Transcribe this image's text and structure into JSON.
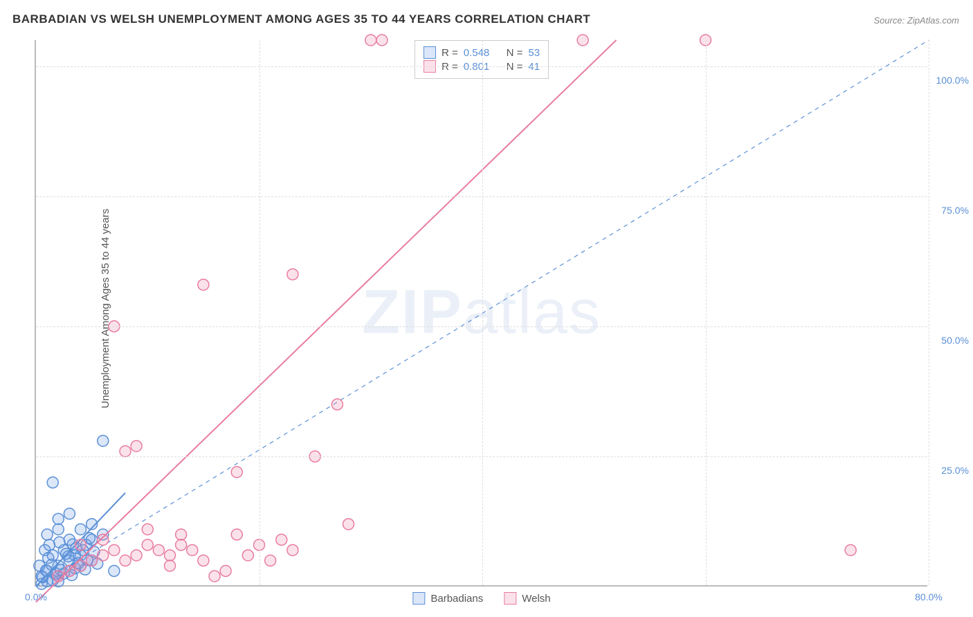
{
  "title": "BARBADIAN VS WELSH UNEMPLOYMENT AMONG AGES 35 TO 44 YEARS CORRELATION CHART",
  "source": "Source: ZipAtlas.com",
  "ylabel": "Unemployment Among Ages 35 to 44 years",
  "watermark_a": "ZIP",
  "watermark_b": "atlas",
  "chart": {
    "type": "scatter",
    "xlim": [
      0,
      80
    ],
    "ylim": [
      0,
      105
    ],
    "x_ticks": [
      0,
      20,
      40,
      60,
      80
    ],
    "y_ticks": [
      25,
      50,
      75,
      100
    ],
    "x_tick_labels": [
      "0.0%",
      "",
      "",
      "",
      "80.0%"
    ],
    "y_tick_labels": [
      "25.0%",
      "50.0%",
      "75.0%",
      "100.0%"
    ],
    "grid_color": "#dddddd",
    "axis_color": "#bbbbbb",
    "background_color": "#ffffff",
    "tick_label_color": "#5a8fd6",
    "tick_fontsize": 14,
    "title_fontsize": 17,
    "label_fontsize": 15,
    "marker_radius": 8,
    "marker_stroke_width": 1.5,
    "line_width": 2,
    "series": [
      {
        "name": "Barbadians",
        "color_fill": "rgba(110,160,230,0.25)",
        "color_stroke": "#5a8fd6",
        "R": "0.548",
        "N": "53",
        "points": [
          [
            0.5,
            0.5
          ],
          [
            1,
            1
          ],
          [
            1.5,
            1.2
          ],
          [
            2,
            2
          ],
          [
            2.5,
            2.5
          ],
          [
            3,
            3
          ],
          [
            3.5,
            3.5
          ],
          [
            4,
            4
          ],
          [
            1,
            3
          ],
          [
            2,
            1
          ],
          [
            3,
            5
          ],
          [
            4,
            6
          ],
          [
            5,
            5
          ],
          [
            2,
            4
          ],
          [
            1.5,
            6
          ],
          [
            0.8,
            7
          ],
          [
            1.2,
            8
          ],
          [
            2.5,
            7
          ],
          [
            3.5,
            6
          ],
          [
            4.5,
            8
          ],
          [
            5,
            9
          ],
          [
            1,
            10
          ],
          [
            2,
            11
          ],
          [
            3,
            9
          ],
          [
            4,
            11
          ],
          [
            5,
            12
          ],
          [
            6,
            10
          ],
          [
            2,
            13
          ],
          [
            3,
            14
          ],
          [
            1.5,
            20
          ],
          [
            6,
            28
          ],
          [
            7,
            3
          ],
          [
            0.5,
            2
          ],
          [
            1.8,
            2.5
          ],
          [
            2.2,
            3.2
          ],
          [
            3.8,
            4.5
          ],
          [
            4.2,
            7
          ],
          [
            0.3,
            4
          ],
          [
            1.1,
            5.5
          ],
          [
            2.7,
            6.3
          ],
          [
            3.3,
            8.1
          ],
          [
            4.8,
            9.3
          ],
          [
            0.6,
            1.8
          ],
          [
            1.4,
            4.2
          ],
          [
            2.9,
            5.8
          ],
          [
            3.6,
            7.4
          ],
          [
            4.4,
            3.3
          ],
          [
            5.2,
            6.7
          ],
          [
            0.9,
            3.1
          ],
          [
            2.1,
            8.5
          ],
          [
            3.2,
            2.2
          ],
          [
            4.6,
            5.1
          ],
          [
            5.5,
            4.4
          ]
        ],
        "trend": {
          "x1": 0,
          "y1": 0,
          "x2": 8,
          "y2": 18,
          "dashed": false
        },
        "reference": {
          "x1": 0,
          "y1": 0,
          "x2": 80,
          "y2": 105,
          "dashed": true
        }
      },
      {
        "name": "Welsh",
        "color_fill": "rgba(240,140,170,0.25)",
        "color_stroke": "#e87ca0",
        "R": "0.801",
        "N": "41",
        "points": [
          [
            2,
            2
          ],
          [
            3,
            3
          ],
          [
            4,
            4
          ],
          [
            5,
            5
          ],
          [
            6,
            6
          ],
          [
            7,
            7
          ],
          [
            8,
            5
          ],
          [
            9,
            6
          ],
          [
            10,
            8
          ],
          [
            11,
            7
          ],
          [
            12,
            6
          ],
          [
            13,
            8
          ],
          [
            14,
            7
          ],
          [
            15,
            5
          ],
          [
            16,
            2
          ],
          [
            17,
            3
          ],
          [
            8,
            26
          ],
          [
            9,
            27
          ],
          [
            23,
            7
          ],
          [
            25,
            25
          ],
          [
            27,
            35
          ],
          [
            28,
            12
          ],
          [
            18,
            10
          ],
          [
            20,
            8
          ],
          [
            22,
            9
          ],
          [
            7,
            50
          ],
          [
            15,
            58
          ],
          [
            23,
            60
          ],
          [
            30,
            105
          ],
          [
            31,
            105
          ],
          [
            49,
            105
          ],
          [
            60,
            105
          ],
          [
            73,
            7
          ],
          [
            13,
            10
          ],
          [
            18,
            22
          ],
          [
            4,
            8
          ],
          [
            6,
            9
          ],
          [
            10,
            11
          ],
          [
            12,
            4
          ],
          [
            19,
            6
          ],
          [
            21,
            5
          ]
        ],
        "trend": {
          "x1": 0,
          "y1": -3,
          "x2": 52,
          "y2": 105,
          "dashed": false
        }
      }
    ]
  },
  "legend": {
    "series1_label": "Barbadians",
    "series2_label": "Welsh",
    "r_label": "R =",
    "n_label": "N ="
  }
}
